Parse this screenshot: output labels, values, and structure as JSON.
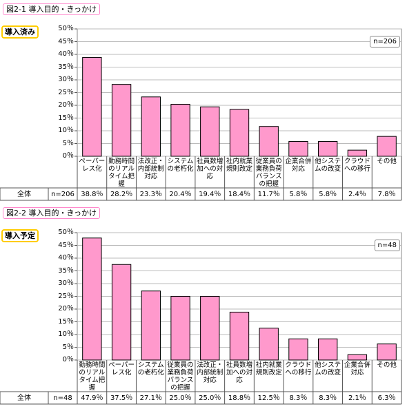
{
  "chart_data": [
    {
      "type": "bar",
      "title": "図2-1 導入目的・きっかけ",
      "badge": "導入済み",
      "n_label": "n=206",
      "total_label": "全体",
      "categories": [
        "ペーパーレス化",
        "勤務時間のリアルタイム把握",
        "法改正・内部統制対応",
        "システムの老朽化",
        "社員数増加への対応",
        "社内就業規則改定",
        "従業員の業務負荷バランスの把握",
        "企業合併対応",
        "他システムの改変",
        "クラウドへの移行",
        "その他"
      ],
      "values": [
        38.8,
        28.2,
        23.3,
        20.4,
        19.4,
        18.4,
        11.7,
        5.8,
        5.8,
        2.4,
        7.8
      ],
      "value_labels": [
        "38.8％",
        "28.2％",
        "23.3％",
        "20.4％",
        "19.4％",
        "18.4％",
        "11.7％",
        "5.8％",
        "5.8％",
        "2.4％",
        "7.8％"
      ],
      "color": "#ff99cc",
      "ylim": [
        0,
        50
      ],
      "yticks": [
        {
          "value": 0,
          "label": "0％"
        },
        {
          "value": 5,
          "label": "5％"
        },
        {
          "value": 10,
          "label": "10％"
        },
        {
          "value": 15,
          "label": "15％"
        },
        {
          "value": 20,
          "label": "20％"
        },
        {
          "value": 25,
          "label": "25％"
        },
        {
          "value": 30,
          "label": "30％"
        },
        {
          "value": 35,
          "label": "35％"
        },
        {
          "value": 40,
          "label": "40％"
        },
        {
          "value": 45,
          "label": "45％"
        },
        {
          "value": 50,
          "label": "50％"
        }
      ],
      "grid": true
    },
    {
      "type": "bar",
      "title": "図2-2 導入目的・きっかけ",
      "badge": "導入予定",
      "n_label": "n=48",
      "total_label": "全体",
      "categories": [
        "勤務時間のリアルタイム把握",
        "ペーパーレス化",
        "システムの老朽化",
        "従業員の業務負荷バランスの把握",
        "法改正・内部統制対応",
        "社員数増加への対応",
        "社内就業規則改定",
        "クラウドへの移行",
        "他システムの改変",
        "企業合併対応",
        "その他"
      ],
      "values": [
        47.9,
        37.5,
        27.1,
        25.0,
        25.0,
        18.8,
        12.5,
        8.3,
        8.3,
        2.1,
        6.3
      ],
      "value_labels": [
        "47.9％",
        "37.5％",
        "27.1％",
        "25.0％",
        "25.0％",
        "18.8％",
        "12.5％",
        "8.3％",
        "8.3％",
        "2.1％",
        "6.3％"
      ],
      "color": "#ff99cc",
      "ylim": [
        0,
        50
      ],
      "yticks": [
        {
          "value": 0,
          "label": "0％"
        },
        {
          "value": 5,
          "label": "5％"
        },
        {
          "value": 10,
          "label": "10％"
        },
        {
          "value": 15,
          "label": "15％"
        },
        {
          "value": 20,
          "label": "20％"
        },
        {
          "value": 25,
          "label": "25％"
        },
        {
          "value": 30,
          "label": "30％"
        },
        {
          "value": 35,
          "label": "35％"
        },
        {
          "value": 40,
          "label": "40％"
        },
        {
          "value": 45,
          "label": "45％"
        },
        {
          "value": 50,
          "label": "50％"
        }
      ],
      "grid": true
    }
  ]
}
